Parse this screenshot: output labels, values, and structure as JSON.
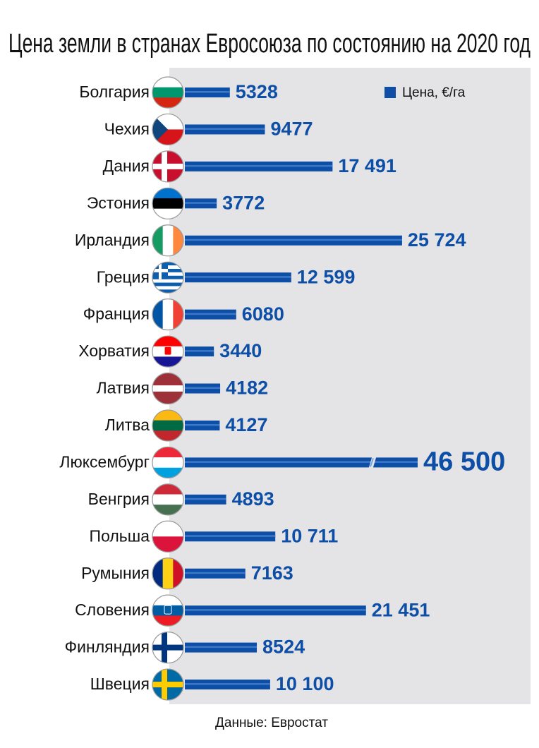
{
  "chart_data": {
    "type": "bar",
    "orientation": "horizontal",
    "title": "Цена земли в странах Евросоюза по состоянию на 2020 год",
    "categories": [
      "Болгария",
      "Чехия",
      "Дания",
      "Эстония",
      "Ирландия",
      "Греция",
      "Франция",
      "Хорватия",
      "Латвия",
      "Литва",
      "Люксембург",
      "Венгрия",
      "Польша",
      "Румыния",
      "Словения",
      "Финляндия",
      "Швеция"
    ],
    "series": [
      {
        "name": "Цена, €/га",
        "color": "#0d4ea6",
        "values": [
          5328,
          9477,
          17491,
          3772,
          25724,
          12599,
          6080,
          3440,
          4182,
          4127,
          46500,
          4893,
          10711,
          7163,
          21451,
          8524,
          10100
        ],
        "value_labels": [
          "5328",
          "9477",
          "17 491",
          "3772",
          "25 724",
          "12 599",
          "6080",
          "3440",
          "4182",
          "4127",
          "46 500",
          "4893",
          "10 711",
          "7163",
          "21 451",
          "8524",
          "10 100"
        ]
      }
    ],
    "legend": "top-right",
    "source": "Данные: Евростат"
  }
}
